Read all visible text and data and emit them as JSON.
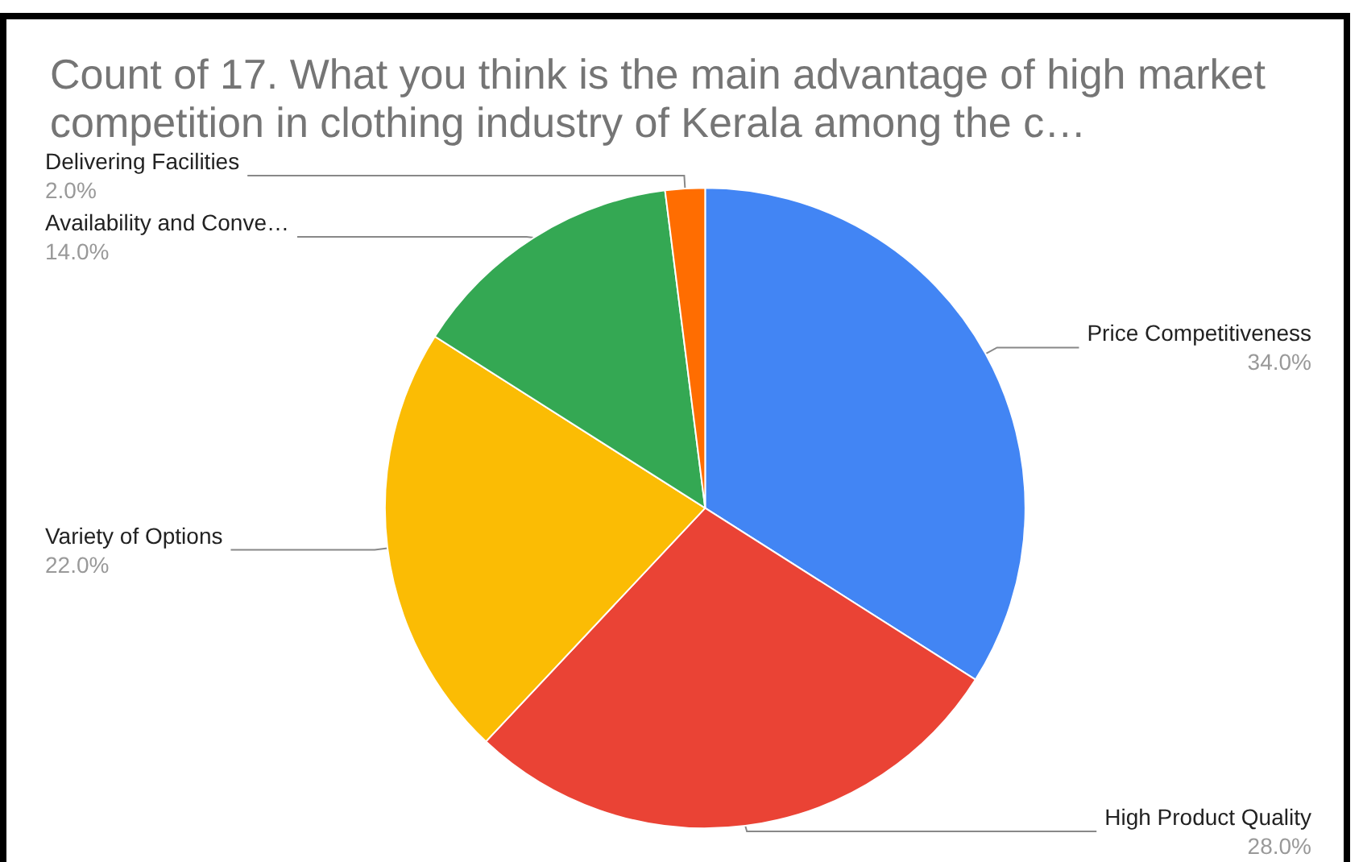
{
  "chart_data": {
    "type": "pie",
    "title": "Count of 17. What you think is the main advantage of high market competition in clothing industry of Kerala among the c…",
    "categories": [
      "Price Competitiveness",
      "High Product Quality",
      "Variety of Options",
      "Availability and Conve…",
      "Delivering Facilities"
    ],
    "values": [
      34,
      28,
      22,
      14,
      2
    ],
    "value_labels": [
      "34.0%",
      "28.0%",
      "22.0%",
      "14.0%",
      "2.0%"
    ],
    "colors": [
      "#4285f4",
      "#ea4335",
      "#fbbc04",
      "#34a853",
      "#ff6d01"
    ],
    "legend": false
  }
}
